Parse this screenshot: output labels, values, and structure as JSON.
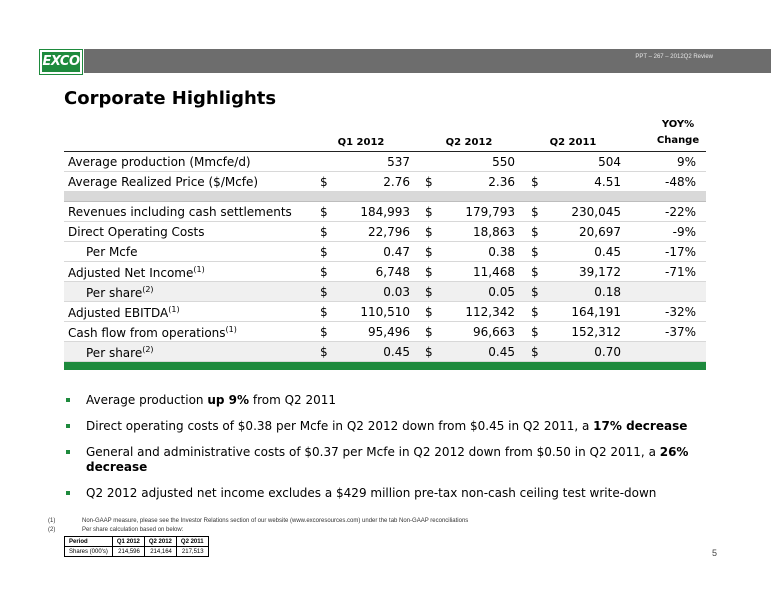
{
  "header": {
    "subtitle": "PPT – 267 – 2012Q2 Review"
  },
  "logo": {
    "text": "EXCO"
  },
  "title": "Corporate Highlights",
  "columns": {
    "q1_2012": "Q1 2012",
    "q2_2012": "Q2 2012",
    "q2_2011": "Q2 2011",
    "yoy_line1": "YOY%",
    "yoy_line2": "Change"
  },
  "rows": [
    {
      "label": "Average production (Mmcfe/d)",
      "sup": "",
      "d1": "",
      "v1": "537",
      "d2": "",
      "v2": "550",
      "d3": "",
      "v3": "504",
      "yoy": "9%"
    },
    {
      "label": "Average Realized Price ($/Mcfe)",
      "sup": "",
      "d1": "$",
      "v1": "2.76",
      "d2": "$",
      "v2": "2.36",
      "d3": "$",
      "v3": "4.51",
      "yoy": "-48%"
    },
    {
      "label": "Revenues including cash settlements",
      "sup": "",
      "d1": "$",
      "v1": "184,993",
      "d2": "$",
      "v2": "179,793",
      "d3": "$",
      "v3": "230,045",
      "yoy": "-22%"
    },
    {
      "label": "Direct Operating Costs",
      "sup": "",
      "d1": "$",
      "v1": "22,796",
      "d2": "$",
      "v2": "18,863",
      "d3": "$",
      "v3": "20,697",
      "yoy": "-9%"
    },
    {
      "label": "Per Mcfe",
      "sup": "",
      "d1": "$",
      "v1": "0.47",
      "d2": "$",
      "v2": "0.38",
      "d3": "$",
      "v3": "0.45",
      "yoy": "-17%"
    },
    {
      "label": "Adjusted Net Income",
      "sup": "(1)",
      "d1": "$",
      "v1": "6,748",
      "d2": "$",
      "v2": "11,468",
      "d3": "$",
      "v3": "39,172",
      "yoy": "-71%"
    },
    {
      "label": "Per share",
      "sup": "(2)",
      "d1": "$",
      "v1": "0.03",
      "d2": "$",
      "v2": "0.05",
      "d3": "$",
      "v3": "0.18",
      "yoy": ""
    },
    {
      "label": "Adjusted EBITDA",
      "sup": "(1)",
      "d1": "$",
      "v1": "110,510",
      "d2": "$",
      "v2": "112,342",
      "d3": "$",
      "v3": "164,191",
      "yoy": "-32%"
    },
    {
      "label": "Cash flow from operations",
      "sup": "(1)",
      "d1": "$",
      "v1": "95,496",
      "d2": "$",
      "v2": "96,663",
      "d3": "$",
      "v3": "152,312",
      "yoy": "-37%"
    },
    {
      "label": "Per share",
      "sup": "(2)",
      "d1": "$",
      "v1": "0.45",
      "d2": "$",
      "v2": "0.45",
      "d3": "$",
      "v3": "0.70",
      "yoy": ""
    }
  ],
  "bullets": [
    {
      "a": "Average production ",
      "b": "up 9%",
      "c": "  from Q2 2011"
    },
    {
      "a": "Direct operating costs of $0.38 per Mcfe in Q2 2012 down from $0.45 in Q2 2011, a ",
      "b": "17%  decrease",
      "c": ""
    },
    {
      "a": "General and administrative costs of $0.37 per Mcfe in Q2 2012 down from $0.50 in Q2 2011, a ",
      "b": "26% decrease",
      "c": ""
    },
    {
      "a": "Q2 2012 adjusted net income excludes a $429 million pre-tax non-cash ceiling test write-down",
      "b": "",
      "c": ""
    }
  ],
  "footnotes": [
    {
      "num": "(1)",
      "text": "Non-GAAP measure, please see the Investor Relations section of our website (www.excoresources.com) under the tab Non-GAAP reconciliations"
    },
    {
      "num": "(2)",
      "text": "Per share calculation based on below:"
    }
  ],
  "shares_table": {
    "header": [
      "Period",
      "Q1 2012",
      "Q2 2012",
      "Q2 2011"
    ],
    "row": [
      "Shares (000's)",
      "214,596",
      "214,164",
      "217,513"
    ]
  },
  "page_number": "5"
}
